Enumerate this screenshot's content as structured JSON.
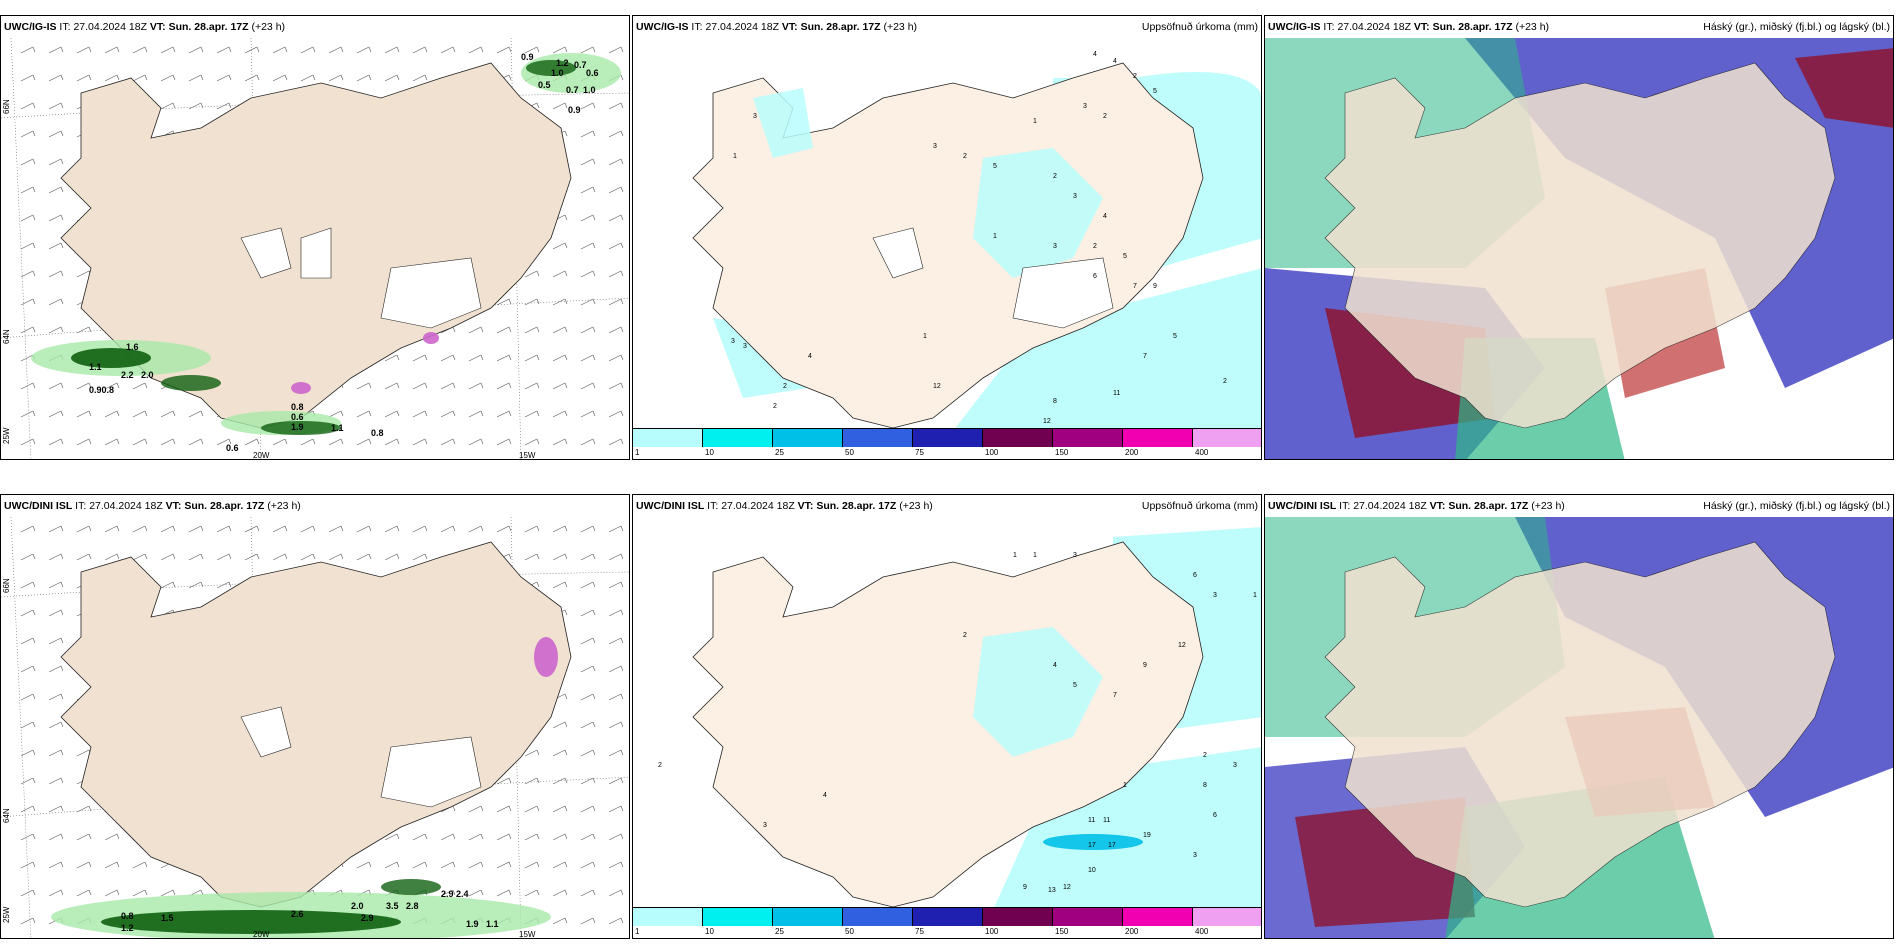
{
  "panels": [
    {
      "id": "r1c1",
      "model": "UWC/IG-IS",
      "it_label": "IT:",
      "it_value": "27.04.2024 18Z",
      "vt_label": "VT:",
      "vt_value": "Sun. 28.apr. 17Z",
      "lead": "(+23 h)",
      "right_title": "",
      "lat_labels": [
        "66N",
        "64N",
        "25W"
      ],
      "lon_labels": [
        "20W",
        "15W"
      ],
      "values": [
        "0.9",
        "1.2",
        "0.7",
        "1.0",
        "0.6",
        "0.5",
        "0.7",
        "1.0",
        "0.9",
        "1.6",
        "1.1",
        "2.2",
        "2.0",
        "0.90.8",
        "0.8",
        "0.6",
        "1.9",
        "1.1",
        "0.8",
        "0.6"
      ]
    },
    {
      "id": "r1c2",
      "model": "UWC/IG-IS",
      "it_label": "IT:",
      "it_value": "27.04.2024 18Z",
      "vt_label": "VT:",
      "vt_value": "Sun. 28.apr. 17Z",
      "lead": "(+23 h)",
      "right_title": "Uppsöfnuð úrkoma (mm)",
      "lat_labels": [],
      "lon_labels": [],
      "values": [
        "4",
        "4",
        "2",
        "5",
        "3",
        "2",
        "3",
        "1",
        "2",
        "1",
        "3",
        "5",
        "2",
        "3",
        "1",
        "4",
        "3",
        "2",
        "5",
        "6",
        "7",
        "9",
        "12",
        "11",
        "8",
        "7",
        "5",
        "2",
        "3",
        "3",
        "2",
        "1",
        "4",
        "2",
        "12"
      ]
    },
    {
      "id": "r1c3",
      "model": "UWC/IG-IS",
      "it_label": "IT:",
      "it_value": "27.04.2024 18Z",
      "vt_label": "VT:",
      "vt_value": "Sun. 28.apr. 17Z",
      "lead": "(+23 h)",
      "right_title": "Háský (gr.), miðský (fj.bl.) og lágský (bl.)",
      "lat_labels": [],
      "lon_labels": [],
      "values": []
    },
    {
      "id": "r2c1",
      "model": "UWC/DINI ISL",
      "it_label": "IT:",
      "it_value": "27.04.2024 18Z",
      "vt_label": "VT:",
      "vt_value": "Sun. 28.apr. 17Z",
      "lead": "(+23 h)",
      "right_title": "",
      "lat_labels": [
        "66N",
        "64N",
        "25W"
      ],
      "lon_labels": [
        "20W",
        "15W"
      ],
      "values": [
        "0.8",
        "1.2",
        "1.5",
        "2.6",
        "2.0",
        "2.9",
        "3.5",
        "2.8",
        "2.9",
        "2.4",
        "1.9",
        "1.1"
      ]
    },
    {
      "id": "r2c2",
      "model": "UWC/DINI ISL",
      "it_label": "IT:",
      "it_value": "27.04.2024 18Z",
      "vt_label": "VT:",
      "vt_value": "Sun. 28.apr. 17Z",
      "lead": "(+23 h)",
      "right_title": "Uppsöfnuð úrkoma (mm)",
      "lat_labels": [],
      "lon_labels": [],
      "values": [
        "1",
        "1",
        "3",
        "6",
        "3",
        "1",
        "2",
        "4",
        "5",
        "7",
        "9",
        "12",
        "11",
        "11",
        "17",
        "17",
        "19",
        "10",
        "13",
        "12",
        "9",
        "6",
        "8",
        "3",
        "2",
        "4",
        "3",
        "2",
        "1",
        "3"
      ]
    },
    {
      "id": "r2c3",
      "model": "UWC/DINI ISL",
      "it_label": "IT:",
      "it_value": "27.04.2024 18Z",
      "vt_label": "VT:",
      "vt_value": "Sun. 28.apr. 17Z",
      "lead": "(+23 h)",
      "right_title": "Háský (gr.), miðský (fj.bl.) og lágský (bl.)",
      "lat_labels": [],
      "lon_labels": [],
      "values": []
    }
  ],
  "colorbar": {
    "labels": [
      "1",
      "10",
      "25",
      "50",
      "75",
      "100",
      "150",
      "200",
      "400"
    ],
    "colors": [
      "#b8fdfd",
      "#00f0f0",
      "#00c0e8",
      "#3060e0",
      "#2020b0",
      "#700050",
      "#a00080",
      "#f000b0",
      "#f0a0f0"
    ]
  },
  "colors": {
    "land": "#f1e1d0",
    "land_precip": "#fcf0e4",
    "precip_light": "#b8fdfd",
    "precip_green_light": "#a8e8a8",
    "precip_green_dark": "#106010",
    "cloud_high": "#2db888",
    "cloud_mid": "#8b1a3a",
    "cloud_low": "#5050c8"
  }
}
